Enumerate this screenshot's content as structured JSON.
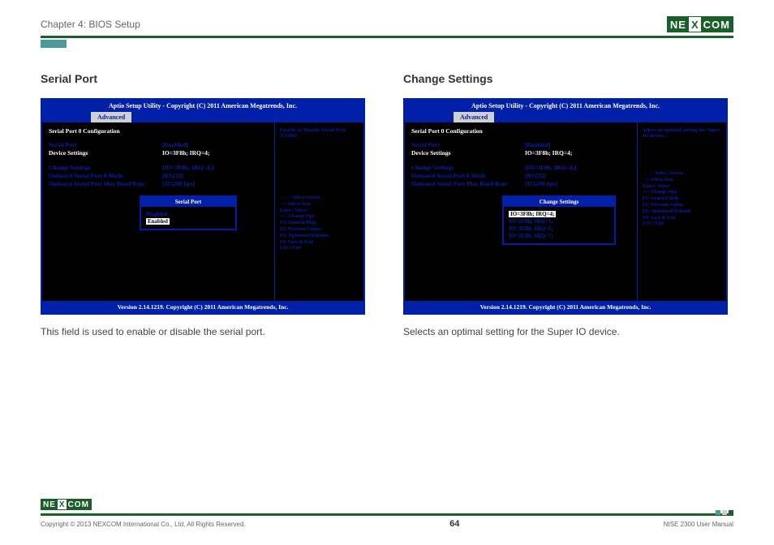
{
  "header": {
    "chapter": "Chapter 4: BIOS Setup",
    "logo_left": "NE",
    "logo_mid": "X",
    "logo_right": "COM"
  },
  "left": {
    "title": "Serial Port",
    "bios": {
      "header": "Aptio Setup Utility - Copyright (C) 2011 American Megatrends, Inc.",
      "tab": "Advanced",
      "section": "Serial Port 0 Configuration",
      "rows": [
        {
          "label": "Serial Port",
          "value": "[Enabled]",
          "labelClass": "blue",
          "valueClass": "blue"
        },
        {
          "label": "Device Settings",
          "value": "IO=3F8h; IRQ=4;",
          "labelClass": "white",
          "valueClass": "white"
        }
      ],
      "rows2": [
        {
          "label": "Change Settings",
          "value": "[IO=3F8h; IRQ=4;]"
        },
        {
          "label": "Onboard Serial Port 0 Mode",
          "value": "[RS232]"
        },
        {
          "label": "Onboard Serial Port Max Baud Rate",
          "value": "[115200 bps]"
        }
      ],
      "popup": {
        "title": "Serial Port",
        "items": [
          {
            "text": "Disabled",
            "selected": false,
            "color": "#0020aa"
          },
          {
            "text": "Enabled",
            "selected": true,
            "color": "#fff"
          }
        ]
      },
      "side_hint": "Enable or Disable Serial Port (COM)",
      "keys": [
        "→←: Select Screen",
        "↑↓: Select Item",
        "Enter: Select",
        "+/-: Change Opt.",
        "F1: General Help",
        "F2: Previous Values",
        "F3: Optimized Defaults",
        "F4: Save & Exit",
        "ESC: Exit"
      ],
      "footer": "Version 2.14.1219. Copyright (C) 2011 American Megatrends, Inc."
    },
    "caption": "This field is used to enable or disable the serial port."
  },
  "right": {
    "title": "Change Settings",
    "bios": {
      "header": "Aptio Setup Utility - Copyright (C) 2011 American Megatrends, Inc.",
      "tab": "Advanced",
      "section": "Serial Port 0 Configuration",
      "rows": [
        {
          "label": "Serial Port",
          "value": "[Enabled]",
          "labelClass": "blue",
          "valueClass": "blue"
        },
        {
          "label": "Device Settings",
          "value": "IO=3F8h; IRQ=4;",
          "labelClass": "white",
          "valueClass": "white"
        }
      ],
      "rows2": [
        {
          "label": "Change Settings",
          "value": "[IO=3F8h; IRQ=4;]"
        },
        {
          "label": "Onboard Serial Port 0 Mode",
          "value": "[RS232]"
        },
        {
          "label": "Onboard Serial Port Max Baud Rate",
          "value": "[115200 bps]"
        }
      ],
      "popup": {
        "title": "Change Settings",
        "items": [
          {
            "text": "IO=3F8h; IRQ=4;",
            "selected": true,
            "color": "#fff"
          },
          {
            "text": "IO=2F8h; IRQ=3;",
            "selected": false,
            "color": "#0020aa"
          },
          {
            "text": "IO=3E8h; IRQ=6;",
            "selected": false,
            "color": "#0020aa"
          },
          {
            "text": "IO=2E8h; IRQ=7;",
            "selected": false,
            "color": "#0020aa"
          }
        ]
      },
      "side_hint": "Select an optimal setting for Super IO device.",
      "keys": [
        "→←: Select Screen",
        "↑↓: Select Item",
        "Enter: Select",
        "+/-: Change Opt.",
        "F1: General Help",
        "F2: Previous Values",
        "F3: Optimized Defaults",
        "F4: Save & Exit",
        "ESC: Exit"
      ],
      "footer": "Version 2.14.1219. Copyright (C) 2011 American Megatrends, Inc."
    },
    "caption": "Selects an optimal setting for the Super IO device."
  },
  "footer": {
    "copyright": "Copyright © 2013 NEXCOM International Co., Ltd. All Rights Reserved.",
    "page": "64",
    "manual": "NISE 2300 User Manual"
  }
}
